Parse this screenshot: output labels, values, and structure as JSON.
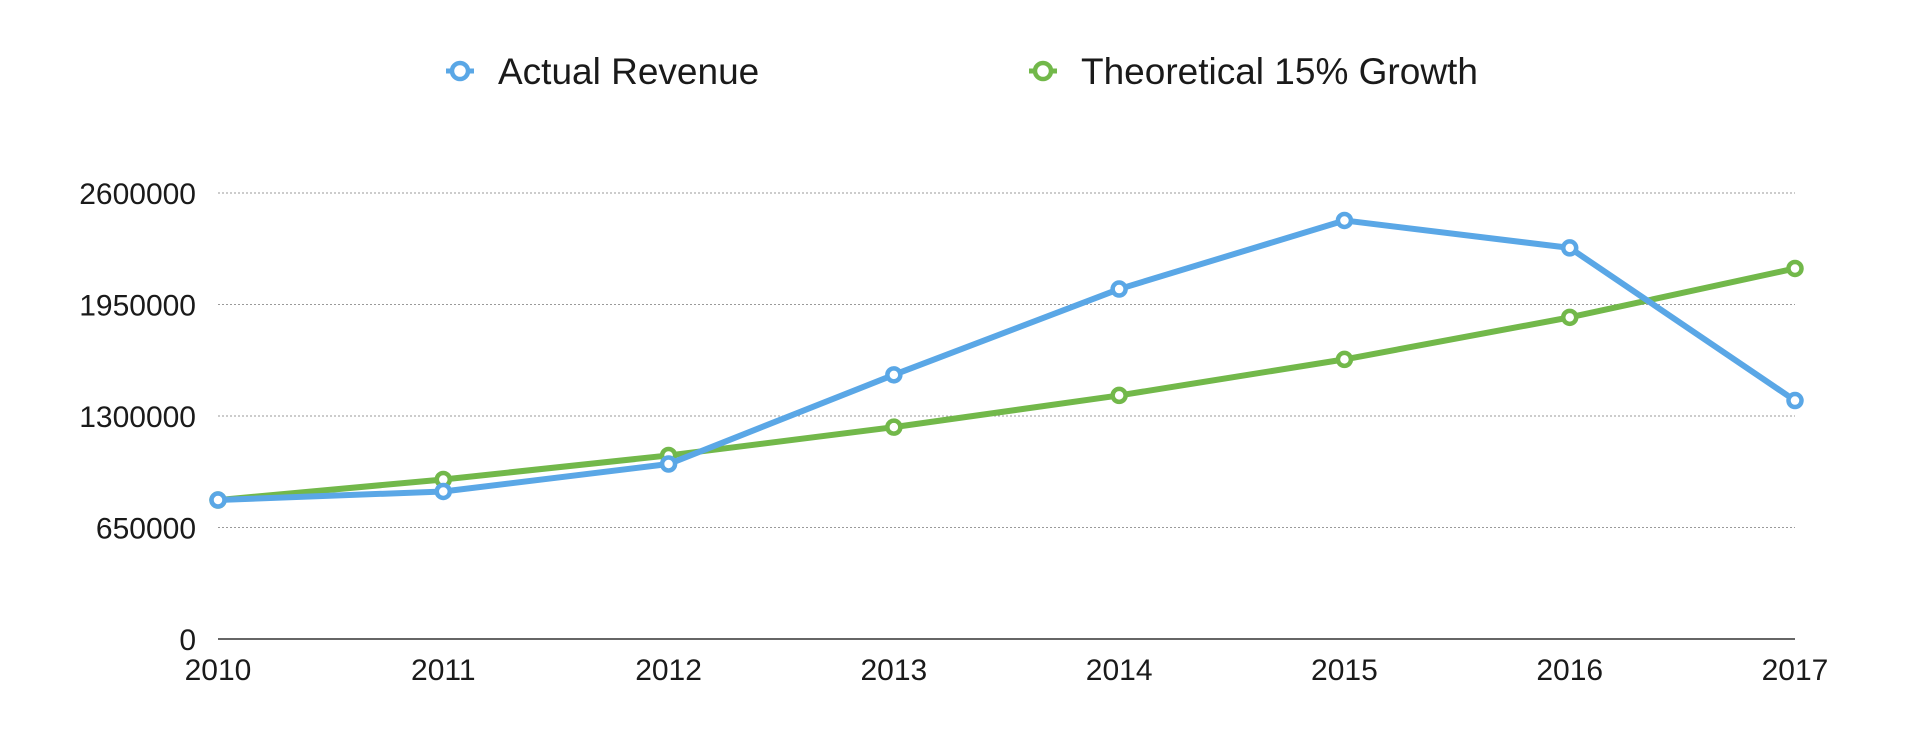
{
  "chart_data": {
    "type": "line",
    "title": "",
    "xlabel": "",
    "ylabel": "",
    "categories": [
      "2010",
      "2011",
      "2012",
      "2013",
      "2014",
      "2015",
      "2016",
      "2017"
    ],
    "y_ticks": [
      "0",
      "650000",
      "1300000",
      "1950000",
      "2600000"
    ],
    "ylim": [
      0,
      2600000
    ],
    "grid": true,
    "legend_position": "top",
    "series": [
      {
        "name": "Actual Revenue",
        "color": "#5aa7e6",
        "values": [
          810000,
          860000,
          1020000,
          1540000,
          2040000,
          2440000,
          2280000,
          1390000
        ]
      },
      {
        "name": "Theoretical 15% Growth",
        "color": "#72b84a",
        "values": [
          810000,
          930000,
          1070000,
          1235000,
          1420000,
          1630000,
          1875000,
          2160000
        ]
      }
    ]
  }
}
